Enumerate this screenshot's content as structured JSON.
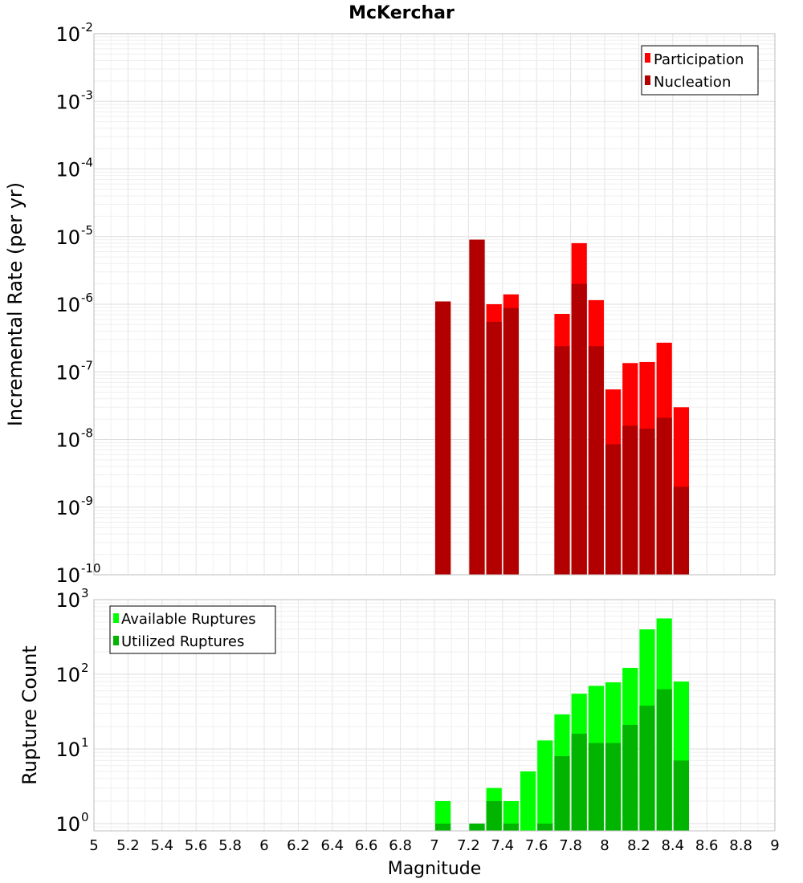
{
  "chart_data": {
    "title": "McKerchar",
    "xlabel": "Magnitude",
    "xlim": [
      5,
      9
    ],
    "x_ticks": [
      "5",
      "5.2",
      "5.4",
      "5.6",
      "5.8",
      "6",
      "6.2",
      "6.4",
      "6.6",
      "6.8",
      "7",
      "7.2",
      "7.4",
      "7.6",
      "7.8",
      "8",
      "8.2",
      "8.4",
      "8.6",
      "8.8",
      "9"
    ],
    "grid": true,
    "panels": [
      {
        "type": "bar",
        "ylabel": "Incremental Rate (per yr)",
        "yscale": "log",
        "ylim": [
          1e-10,
          0.01
        ],
        "y_ticks": [
          {
            "base": "10",
            "exp": "-10"
          },
          {
            "base": "10",
            "exp": "-9"
          },
          {
            "base": "10",
            "exp": "-8"
          },
          {
            "base": "10",
            "exp": "-7"
          },
          {
            "base": "10",
            "exp": "-6"
          },
          {
            "base": "10",
            "exp": "-5"
          },
          {
            "base": "10",
            "exp": "-4"
          },
          {
            "base": "10",
            "exp": "-3"
          },
          {
            "base": "10",
            "exp": "-2"
          }
        ],
        "legend_position": "top-right",
        "bar_width": 0.1,
        "series": [
          {
            "name": "Participation",
            "color": "#ff0000",
            "x": [
              7.05,
              7.25,
              7.35,
              7.45,
              7.75,
              7.85,
              7.95,
              8.05,
              8.15,
              8.25,
              8.35,
              8.45
            ],
            "values": [
              1.1e-06,
              9e-06,
              1e-06,
              1.4e-06,
              7.2e-07,
              8e-06,
              1.15e-06,
              5.5e-08,
              1.35e-07,
              1.4e-07,
              2.7e-07,
              3e-08
            ]
          },
          {
            "name": "Nucleation",
            "color": "#b20000",
            "x": [
              7.05,
              7.25,
              7.35,
              7.45,
              7.75,
              7.85,
              7.95,
              8.05,
              8.15,
              8.25,
              8.35,
              8.45
            ],
            "values": [
              1.1e-06,
              9e-06,
              5.5e-07,
              8.8e-07,
              2.4e-07,
              2e-06,
              2.4e-07,
              8.5e-09,
              1.6e-08,
              1.45e-08,
              2.1e-08,
              2e-09
            ]
          }
        ]
      },
      {
        "type": "bar",
        "ylabel": "Rupture Count",
        "yscale": "log",
        "ylim": [
          0.8,
          1000
        ],
        "y_ticks": [
          {
            "base": "10",
            "exp": "0"
          },
          {
            "base": "10",
            "exp": "1"
          },
          {
            "base": "10",
            "exp": "2"
          },
          {
            "base": "10",
            "exp": "3"
          }
        ],
        "legend_position": "top-left",
        "bar_width": 0.1,
        "series": [
          {
            "name": "Available Ruptures",
            "color": "#00ff00",
            "x": [
              7.05,
              7.25,
              7.35,
              7.45,
              7.55,
              7.65,
              7.75,
              7.85,
              7.95,
              8.05,
              8.15,
              8.25,
              8.35,
              8.45
            ],
            "values": [
              2,
              1,
              3,
              2,
              5,
              13,
              29,
              55,
              70,
              78,
              122,
              400,
              560,
              80
            ]
          },
          {
            "name": "Utilized Ruptures",
            "color": "#00b400",
            "x": [
              7.05,
              7.25,
              7.35,
              7.45,
              7.65,
              7.75,
              7.85,
              7.95,
              8.05,
              8.15,
              8.25,
              8.35,
              8.45
            ],
            "values": [
              1,
              1,
              2,
              1,
              1,
              8,
              16,
              12,
              12,
              21,
              38,
              63,
              7
            ]
          }
        ]
      }
    ]
  }
}
